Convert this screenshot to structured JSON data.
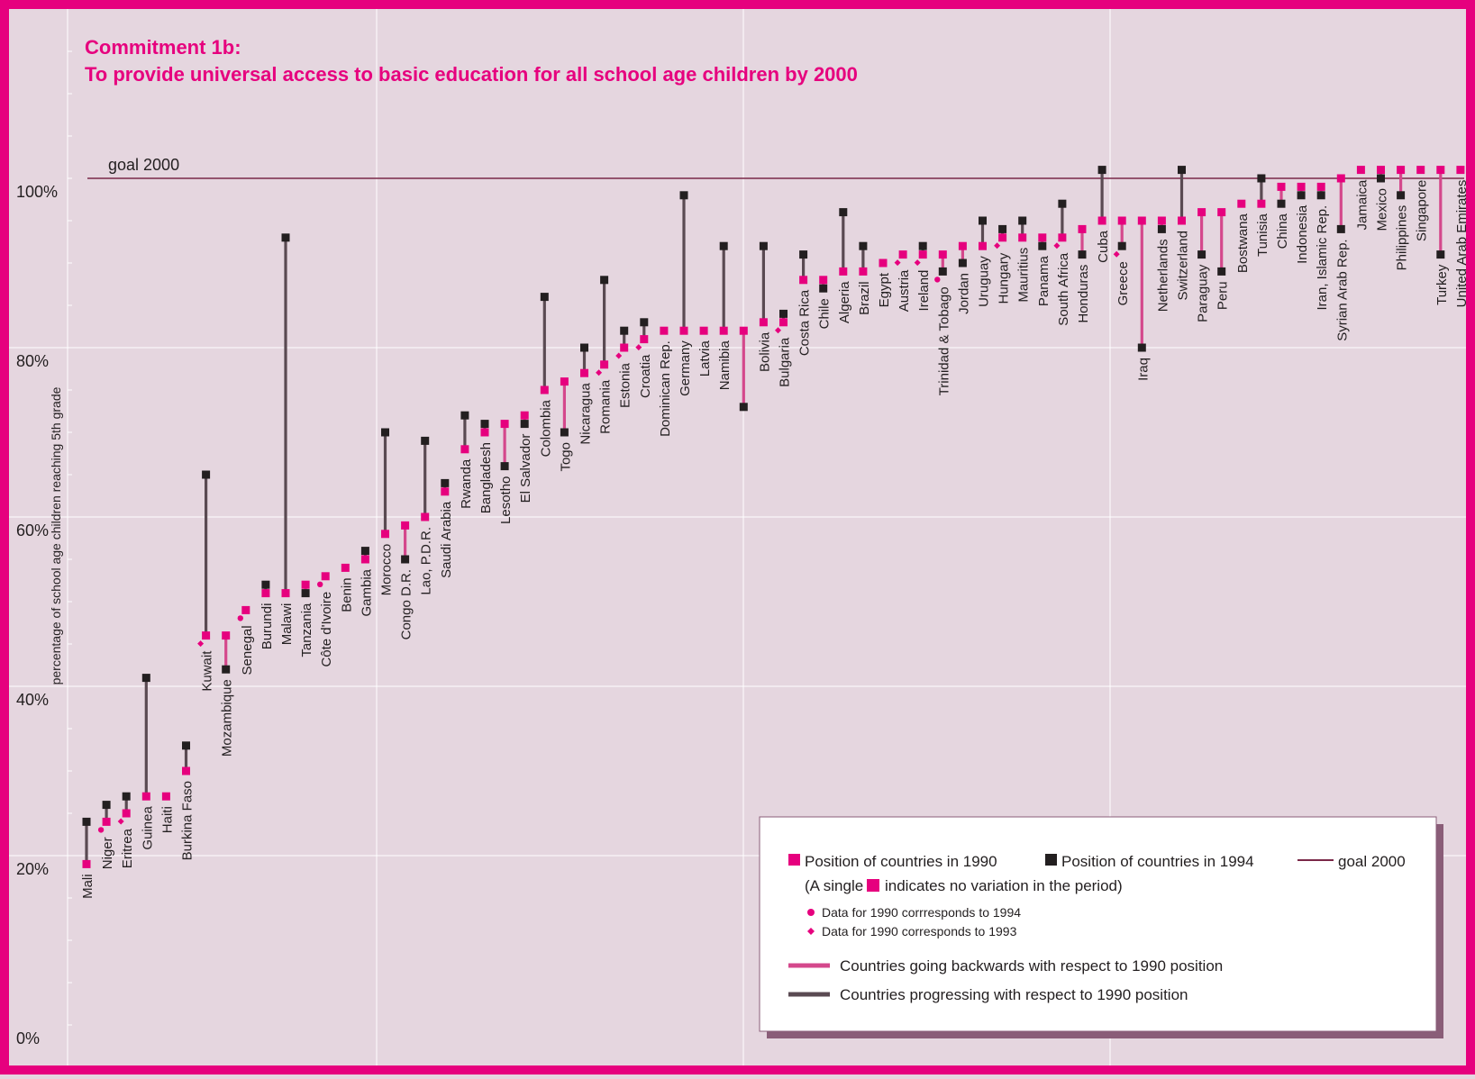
{
  "chart_data": {
    "type": "dumbbell",
    "title": "Commitment 1b:",
    "subtitle": "To provide universal access to basic education for all school age children by 2000",
    "ylabel": "percentage of school age children reaching 5th grade",
    "ylim": [
      0,
      100
    ],
    "yticks": [
      "0%",
      "20%",
      "40%",
      "60%",
      "80%",
      "100%"
    ],
    "grid": true,
    "goal": {
      "label": "goal 2000",
      "value": 100
    },
    "colors": {
      "y1990": "#e6007e",
      "y1994": "#231f20",
      "backwards": "#d4488c",
      "progress": "#5a4a52",
      "goal": "#7a2848",
      "frame": "#e6007e",
      "background": "#e5d6df",
      "grid": "#ffffff"
    },
    "series": [
      {
        "name": "Position of countries in 1990"
      },
      {
        "name": "Position of countries in 1994"
      }
    ],
    "countries": [
      {
        "name": "Mali",
        "v1990": 19,
        "v1994": 24,
        "mark": ""
      },
      {
        "name": "Niger",
        "v1990": 24,
        "v1994": 26,
        "mark": "circle"
      },
      {
        "name": "Eritrea",
        "v1990": 25,
        "v1994": 27,
        "mark": "diamond"
      },
      {
        "name": "Guinea",
        "v1990": 27,
        "v1994": 41,
        "mark": ""
      },
      {
        "name": "Haiti",
        "v1990": 27,
        "v1994": 27,
        "mark": ""
      },
      {
        "name": "Burkina Faso",
        "v1990": 30,
        "v1994": 33,
        "mark": ""
      },
      {
        "name": "Kuwait",
        "v1990": 46,
        "v1994": 65,
        "mark": "diamond"
      },
      {
        "name": "Mozambique",
        "v1990": 46,
        "v1994": 42,
        "mark": ""
      },
      {
        "name": "Senegal",
        "v1990": 49,
        "v1994": 49,
        "mark": "circle"
      },
      {
        "name": "Burundi",
        "v1990": 51,
        "v1994": 52,
        "mark": ""
      },
      {
        "name": "Malawi",
        "v1990": 51,
        "v1994": 93,
        "mark": ""
      },
      {
        "name": "Tanzania",
        "v1990": 52,
        "v1994": 51,
        "mark": ""
      },
      {
        "name": "Côte d'Ivoire",
        "v1990": 53,
        "v1994": 53,
        "mark": "circle"
      },
      {
        "name": "Benin",
        "v1990": 54,
        "v1994": 54,
        "mark": ""
      },
      {
        "name": "Gambia",
        "v1990": 55,
        "v1994": 56,
        "mark": ""
      },
      {
        "name": "Morocco",
        "v1990": 58,
        "v1994": 70,
        "mark": ""
      },
      {
        "name": "Congo D.R.",
        "v1990": 59,
        "v1994": 55,
        "mark": ""
      },
      {
        "name": "Lao, P.D.R.",
        "v1990": 60,
        "v1994": 69,
        "mark": ""
      },
      {
        "name": "Saudi Arabia",
        "v1990": 63,
        "v1994": 64,
        "mark": ""
      },
      {
        "name": "Rwanda",
        "v1990": 68,
        "v1994": 72,
        "mark": ""
      },
      {
        "name": "Bangladesh",
        "v1990": 70,
        "v1994": 71,
        "mark": ""
      },
      {
        "name": "Lesotho",
        "v1990": 71,
        "v1994": 66,
        "mark": ""
      },
      {
        "name": "El Salvador",
        "v1990": 72,
        "v1994": 71,
        "mark": ""
      },
      {
        "name": "Colombia",
        "v1990": 75,
        "v1994": 86,
        "mark": ""
      },
      {
        "name": "Togo",
        "v1990": 76,
        "v1994": 70,
        "mark": ""
      },
      {
        "name": "Nicaragua",
        "v1990": 77,
        "v1994": 80,
        "mark": ""
      },
      {
        "name": "Romania",
        "v1990": 78,
        "v1994": 88,
        "mark": "diamond"
      },
      {
        "name": "Estonia",
        "v1990": 80,
        "v1994": 82,
        "mark": "diamond"
      },
      {
        "name": "Croatia",
        "v1990": 81,
        "v1994": 83,
        "mark": "diamond"
      },
      {
        "name": "Dominican Rep.",
        "v1990": 82,
        "v1994": 82,
        "mark": ""
      },
      {
        "name": "Germany",
        "v1990": 82,
        "v1994": 98,
        "mark": ""
      },
      {
        "name": "Latvia",
        "v1990": 82,
        "v1994": 82,
        "mark": ""
      },
      {
        "name": "Namibia",
        "v1990": 82,
        "v1994": 92,
        "mark": ""
      },
      {
        "name": "",
        "v1990": 82,
        "v1994": 73,
        "mark": ""
      },
      {
        "name": "Bolivia",
        "v1990": 83,
        "v1994": 92,
        "mark": ""
      },
      {
        "name": "Bulgaria",
        "v1990": 83,
        "v1994": 84,
        "mark": "diamond"
      },
      {
        "name": "Costa Rica",
        "v1990": 88,
        "v1994": 91,
        "mark": ""
      },
      {
        "name": "Chile",
        "v1990": 88,
        "v1994": 87,
        "mark": ""
      },
      {
        "name": "Algeria",
        "v1990": 89,
        "v1994": 96,
        "mark": ""
      },
      {
        "name": "Brazil",
        "v1990": 89,
        "v1994": 92,
        "mark": ""
      },
      {
        "name": "Egypt",
        "v1990": 90,
        "v1994": 90,
        "mark": ""
      },
      {
        "name": "Austria",
        "v1990": 91,
        "v1994": 91,
        "mark": "diamond"
      },
      {
        "name": "Ireland",
        "v1990": 91,
        "v1994": 92,
        "mark": "diamond"
      },
      {
        "name": "Trinidad  & Tobago",
        "v1990": 91,
        "v1994": 89,
        "mark": "circle"
      },
      {
        "name": "Jordan",
        "v1990": 92,
        "v1994": 90,
        "mark": ""
      },
      {
        "name": "Uruguay",
        "v1990": 92,
        "v1994": 95,
        "mark": ""
      },
      {
        "name": "Hungary",
        "v1990": 93,
        "v1994": 94,
        "mark": "diamond"
      },
      {
        "name": "Mauritius",
        "v1990": 93,
        "v1994": 95,
        "mark": ""
      },
      {
        "name": "Panama",
        "v1990": 93,
        "v1994": 92,
        "mark": ""
      },
      {
        "name": "South Africa",
        "v1990": 93,
        "v1994": 97,
        "mark": "diamond"
      },
      {
        "name": "Honduras",
        "v1990": 94,
        "v1994": 91,
        "mark": ""
      },
      {
        "name": "Cuba",
        "v1990": 95,
        "v1994": 101,
        "mark": ""
      },
      {
        "name": "Greece",
        "v1990": 95,
        "v1994": 92,
        "mark": "diamond"
      },
      {
        "name": "Iraq",
        "v1990": 95,
        "v1994": 80,
        "mark": ""
      },
      {
        "name": "Netherlands",
        "v1990": 95,
        "v1994": 94,
        "mark": ""
      },
      {
        "name": "Switzerland",
        "v1990": 95,
        "v1994": 101,
        "mark": ""
      },
      {
        "name": "Paraguay",
        "v1990": 96,
        "v1994": 91,
        "mark": ""
      },
      {
        "name": "Peru",
        "v1990": 96,
        "v1994": 89,
        "mark": ""
      },
      {
        "name": "Bostwana",
        "v1990": 97,
        "v1994": 97,
        "mark": ""
      },
      {
        "name": "Tunisia",
        "v1990": 97,
        "v1994": 100,
        "mark": ""
      },
      {
        "name": "China",
        "v1990": 99,
        "v1994": 97,
        "mark": ""
      },
      {
        "name": "Indonesia",
        "v1990": 99,
        "v1994": 98,
        "mark": ""
      },
      {
        "name": "Iran, Islamic Rep.",
        "v1990": 99,
        "v1994": 98,
        "mark": ""
      },
      {
        "name": "Syrian Arab Rep.",
        "v1990": 100,
        "v1994": 94,
        "mark": ""
      },
      {
        "name": "Jamaica",
        "v1990": 101,
        "v1994": 101,
        "mark": ""
      },
      {
        "name": "Mexico",
        "v1990": 101,
        "v1994": 100,
        "mark": ""
      },
      {
        "name": "Philippines",
        "v1990": 101,
        "v1994": 98,
        "mark": ""
      },
      {
        "name": "Singapore",
        "v1990": 101,
        "v1994": 101,
        "mark": ""
      },
      {
        "name": "Turkey",
        "v1990": 101,
        "v1994": 91,
        "mark": ""
      },
      {
        "name": "United Arab Emirates",
        "v1990": 101,
        "v1994": 101,
        "mark": ""
      }
    ],
    "legend": {
      "placement": "bottom-right",
      "pos1990": "Position of countries in 1990",
      "pos1994": "Position of countries in 1994",
      "goal": "goal 2000",
      "single_a": "(A single",
      "single_b": "indicates  no variation in the period)",
      "circle_note": "Data  for 1990 corrresponds to 1994",
      "diamond_note": "Data for 1990 corresponds to 1993",
      "backwards": "Countries going backwards with respect to 1990 position",
      "progress": "Countries progressing with respect to 1990 position"
    }
  }
}
